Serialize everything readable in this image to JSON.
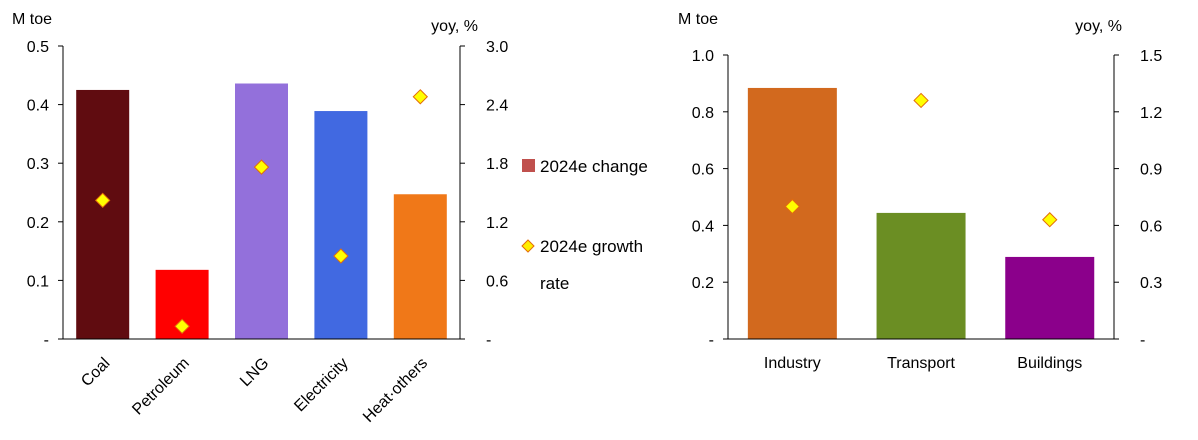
{
  "chart_data": [
    {
      "type": "bar",
      "ylabel_left": "M toe",
      "ylabel_right": "yoy, %",
      "categories": [
        "Coal",
        "Petroleum",
        "LNG",
        "Electricity",
        "Heat·others"
      ],
      "series": [
        {
          "name": "2024e change",
          "axis": "left",
          "values": [
            0.425,
            0.118,
            0.436,
            0.389,
            0.247
          ]
        },
        {
          "name": "2024e growth rate",
          "axis": "right",
          "marker": "diamond",
          "values": [
            1.42,
            0.13,
            1.76,
            0.85,
            2.48
          ]
        }
      ],
      "bar_colors": [
        "#600C10",
        "#FF0000",
        "#9370DB",
        "#4169E1",
        "#F07818"
      ],
      "ylim_left": [
        0,
        0.5
      ],
      "yticks_left": [
        "-",
        "0.1",
        "0.2",
        "0.3",
        "0.4",
        "0.5"
      ],
      "ylim_right": [
        0,
        3.0
      ],
      "yticks_right": [
        "-",
        "0.6",
        "1.2",
        "1.8",
        "2.4",
        "3.0"
      ],
      "grid": false
    },
    {
      "type": "bar",
      "ylabel_left": "M toe",
      "ylabel_right": "yoy, %",
      "categories": [
        "Industry",
        "Transport",
        "Buildings"
      ],
      "series": [
        {
          "name": "2024e change",
          "axis": "left",
          "values": [
            0.884,
            0.444,
            0.289
          ]
        },
        {
          "name": "2024e growth rate",
          "axis": "right",
          "marker": "diamond",
          "values": [
            0.7,
            1.26,
            0.63
          ]
        }
      ],
      "bar_colors": [
        "#D2691E",
        "#6B8E23",
        "#8B008B"
      ],
      "ylim_left": [
        0,
        1.0
      ],
      "yticks_left": [
        "-",
        "0.2",
        "0.4",
        "0.6",
        "0.8",
        "1.0"
      ],
      "ylim_right": [
        0,
        1.5
      ],
      "yticks_right": [
        "-",
        "0.3",
        "0.6",
        "0.9",
        "1.2",
        "1.5"
      ],
      "grid": false
    }
  ],
  "legend": {
    "bar_label": "2024e change",
    "marker_label_line1": "2024e growth",
    "marker_label_line2": "rate",
    "bar_color": "#C0504D",
    "marker_fill": "#FFEE00",
    "marker_stroke": "#E36C0A"
  },
  "colors": {
    "axis": "#000000",
    "marker_fill": "#FFFF00",
    "marker_stroke": "#E36C0A"
  }
}
